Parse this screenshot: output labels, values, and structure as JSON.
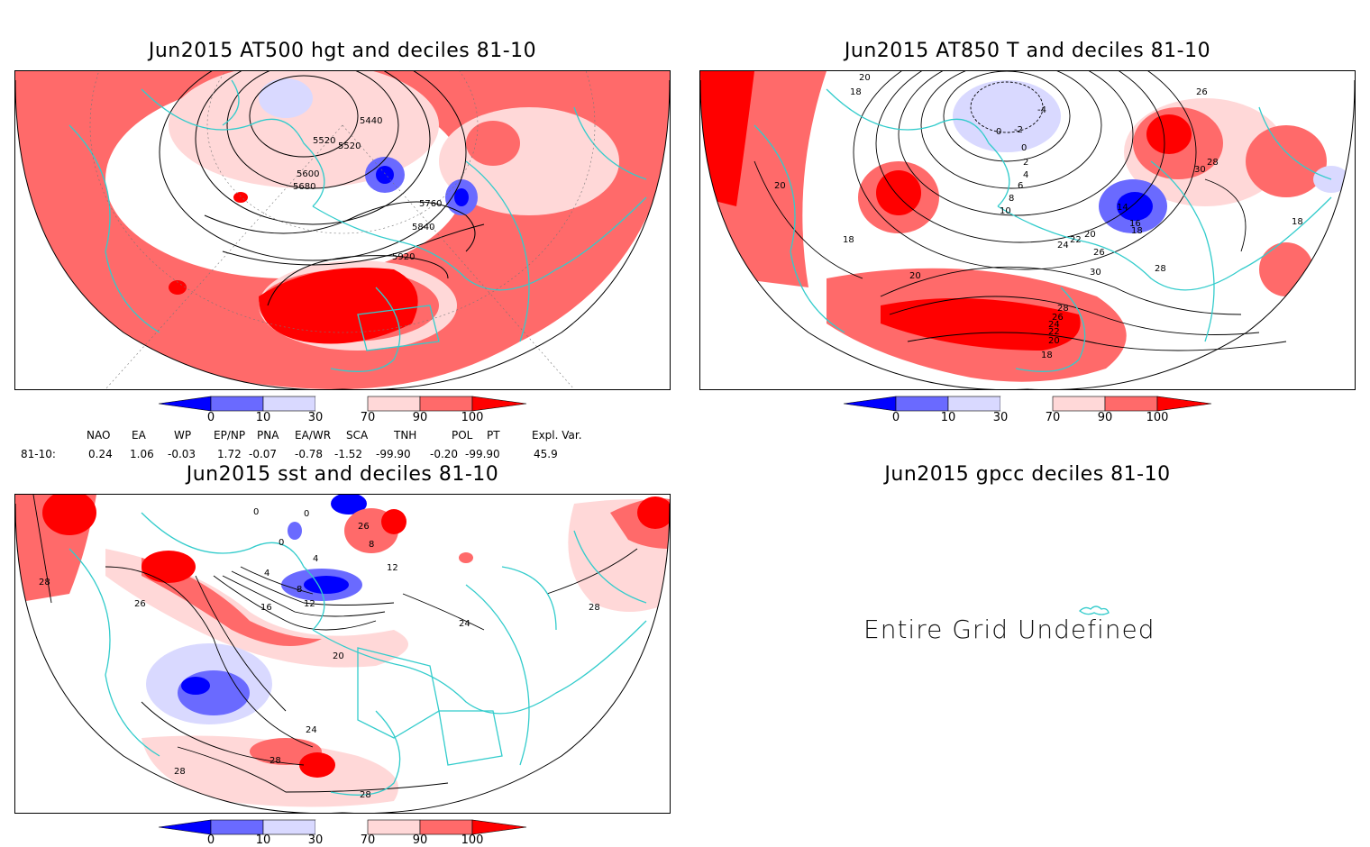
{
  "panels": {
    "hgt": {
      "title": "Jun2015 AT500 hgt and deciles 81-10",
      "contour_labels": [
        "5440",
        "5520",
        "5520",
        "5600",
        "5680",
        "5760",
        "5840",
        "5920"
      ]
    },
    "t850": {
      "title": "Jun2015 AT850 T and deciles 81-10",
      "contour_labels": [
        "20",
        "18",
        "0",
        "-2",
        "-4",
        "0",
        "2",
        "4",
        "6",
        "8",
        "10",
        "14",
        "16",
        "18",
        "20",
        "20",
        "22",
        "24",
        "26",
        "26",
        "28",
        "28",
        "30",
        "30",
        "28",
        "26",
        "24",
        "22",
        "20",
        "18",
        "18",
        "20",
        "18"
      ]
    },
    "sst": {
      "title": "Jun2015 sst and deciles 81-10",
      "contour_labels": [
        "0",
        "0",
        "0",
        "4",
        "4",
        "8",
        "8",
        "12",
        "12",
        "16",
        "20",
        "24",
        "24",
        "26",
        "28",
        "28",
        "28",
        "28",
        "28",
        "26"
      ]
    },
    "gpcc": {
      "title": "Jun2015 gpcc deciles 81-10",
      "message": "Entire Grid Undefined"
    }
  },
  "colorbar": {
    "ticks": [
      "0",
      "10",
      "30",
      "70",
      "90",
      "100"
    ],
    "colors": {
      "dark_blue": "#0000ff",
      "mid_blue": "#6a6aff",
      "light_blue": "#d9d9ff",
      "white": "#ffffff",
      "light_red": "#ffd8d8",
      "mid_red": "#ff6a6a",
      "dark_red": "#ff0000"
    }
  },
  "teleconnections": {
    "row_label": "81-10:",
    "headers": [
      "NAO",
      "EA",
      "WP",
      "EP/NP",
      "PNA",
      "EA/WR",
      "SCA",
      "TNH",
      "POL",
      "PT",
      "Expl. Var."
    ],
    "values": [
      "0.24",
      "1.06",
      "-0.03",
      "1.72",
      "-0.07",
      "-0.78",
      "-1.52",
      "-99.90",
      "-0.20",
      "-99.90",
      "45.9"
    ]
  },
  "colors": {
    "coast": "#33cccc",
    "contour": "#000000"
  }
}
